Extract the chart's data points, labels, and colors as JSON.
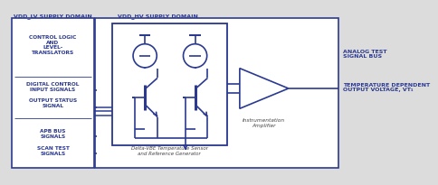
{
  "bg_color": "#dcdcdc",
  "box_color": "#2b3990",
  "text_color": "#2b3990",
  "lv_label": "VDD_LV SUPPLY DOMAIN",
  "hv_label": "VDD_HV SUPPLY DOMAIN",
  "lv_signals": [
    "CONTROL LOGIC\nAND\nLEVEL-\nTRANSLATORS",
    "DIGITAL CONTROL\nINPUT SIGNALS",
    "OUTPUT STATUS\nSIGNAL",
    "APB BUS\nSIGNALS",
    "SCAN TEST\nSIGNALS"
  ],
  "sensor_label": "Delta-VBE Temperature Sensor\nand Reference Generator",
  "amp_label": "Instrumentation\nAmplifier",
  "analog_test_label": "ANALOG TEST\nSIGNAL BUS",
  "temp_out_label": "TEMPERATURE DEPENDENT\nOUTPUT VOLTAGE, VT₁",
  "lw": 1.2
}
